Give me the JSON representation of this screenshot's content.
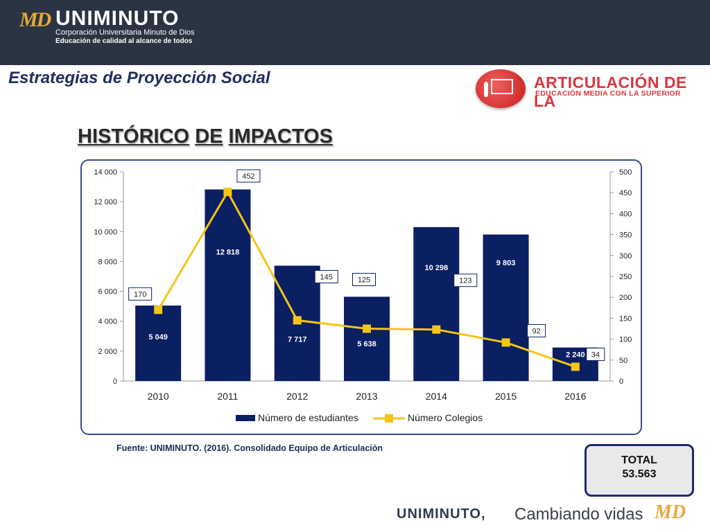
{
  "header": {
    "logo_mark": "MD",
    "logo_title": "UNIMINUTO",
    "logo_subtitle1": "Corporación Universitaria Minuto de Dios",
    "logo_subtitle2": "Educación de calidad al alcance de todos"
  },
  "section_title": "Estrategias de Proyección Social",
  "articulacion": {
    "title": "ARTICULACIÓN DE LA",
    "subtitle": "EDUCACIÓN MEDIA CON LA SUPERIOR"
  },
  "main_title": {
    "word1": "HISTÓRICO",
    "word2": "DE",
    "word3": "IMPACTOS"
  },
  "chart_data": {
    "type": "bar",
    "categories": [
      "2010",
      "2011",
      "2012",
      "2013",
      "2014",
      "2015",
      "2016"
    ],
    "series": [
      {
        "name": "Número de estudiantes",
        "type": "bar",
        "axis": "left",
        "values": [
          5049,
          12818,
          7717,
          5638,
          10298,
          9803,
          2240
        ],
        "labels": [
          "5 049",
          "12 818",
          "7 717",
          "5 638",
          "10 298",
          "9 803",
          "2 240"
        ],
        "color": "#0b1f63"
      },
      {
        "name": "Número Colegios",
        "type": "line",
        "axis": "right",
        "values": [
          170,
          452,
          145,
          125,
          123,
          92,
          34
        ],
        "color": "#f3c614"
      }
    ],
    "y_left": {
      "min": 0,
      "max": 14000,
      "ticks": [
        "0",
        "2 000",
        "4 000",
        "6 000",
        "8 000",
        "10 000",
        "12 000",
        "14 000"
      ]
    },
    "y_right": {
      "min": 0,
      "max": 500,
      "ticks": [
        "0",
        "50",
        "100",
        "150",
        "200",
        "250",
        "300",
        "350",
        "400",
        "450",
        "500"
      ]
    },
    "legend_position": "bottom",
    "grid": false
  },
  "source": "Fuente: UNIMINUTO. (2016). Consolidado Equipo de Articulación",
  "total": {
    "label": "TOTAL",
    "value": "53.563"
  },
  "footer": {
    "brand": "UNIMINUTO,",
    "tagline": "Cambiando vidas",
    "mark": "MD"
  }
}
